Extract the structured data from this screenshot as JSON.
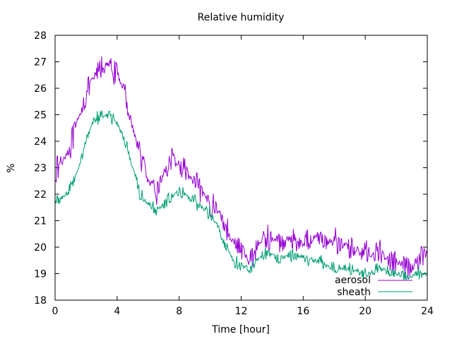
{
  "chart_data": {
    "type": "line",
    "title": "Relative humidity",
    "xlabel": "Time [hour]",
    "ylabel": "%",
    "xlim": [
      0,
      24
    ],
    "ylim": [
      18,
      28
    ],
    "x_ticks": [
      "0",
      "4",
      "8",
      "12",
      "16",
      "20",
      "24"
    ],
    "y_ticks": [
      "18",
      "19",
      "20",
      "21",
      "22",
      "23",
      "24",
      "25",
      "26",
      "27",
      "28"
    ],
    "grid": false,
    "legend_position": "bottom-right",
    "x": [
      0,
      0.5,
      1,
      1.5,
      2,
      2.5,
      3,
      3.5,
      4,
      4.5,
      5,
      5.5,
      6,
      6.5,
      7,
      7.5,
      8,
      8.5,
      9,
      9.5,
      10,
      10.5,
      11,
      11.5,
      12,
      12.5,
      13,
      13.5,
      14,
      14.5,
      15,
      15.5,
      16,
      16.5,
      17,
      17.5,
      18,
      18.5,
      19,
      19.5,
      20,
      20.5,
      21,
      21.5,
      22,
      22.5,
      23,
      23.5,
      24
    ],
    "series": [
      {
        "name": "aerosol",
        "color": "#9400d3",
        "noise": 0.55,
        "values": [
          22.8,
          23.3,
          23.8,
          24.8,
          25.8,
          26.4,
          26.8,
          26.9,
          26.5,
          25.9,
          24.5,
          23.5,
          22.5,
          22.0,
          22.8,
          23.3,
          23.1,
          22.8,
          22.4,
          22.0,
          21.7,
          21.4,
          20.8,
          20.2,
          19.9,
          19.5,
          20.0,
          20.4,
          20.3,
          20.2,
          20.3,
          20.3,
          20.1,
          20.5,
          20.4,
          20.2,
          20.3,
          20.1,
          20.0,
          19.9,
          19.8,
          19.7,
          19.8,
          19.5,
          19.4,
          19.3,
          19.2,
          19.6,
          19.8
        ]
      },
      {
        "name": "sheath",
        "color": "#009e73",
        "noise": 0.3,
        "values": [
          21.7,
          21.9,
          22.2,
          23.0,
          24.0,
          24.8,
          25.0,
          25.0,
          24.7,
          24.0,
          23.0,
          22.0,
          21.6,
          21.4,
          21.6,
          21.9,
          22.1,
          21.9,
          21.7,
          21.5,
          21.3,
          20.8,
          20.1,
          19.5,
          19.3,
          19.2,
          19.5,
          19.8,
          19.7,
          19.6,
          19.7,
          19.7,
          19.6,
          19.5,
          19.5,
          19.3,
          19.3,
          19.2,
          19.2,
          19.1,
          19.0,
          19.0,
          19.2,
          19.1,
          19.0,
          18.9,
          18.9,
          19.0,
          19.0
        ]
      }
    ]
  }
}
